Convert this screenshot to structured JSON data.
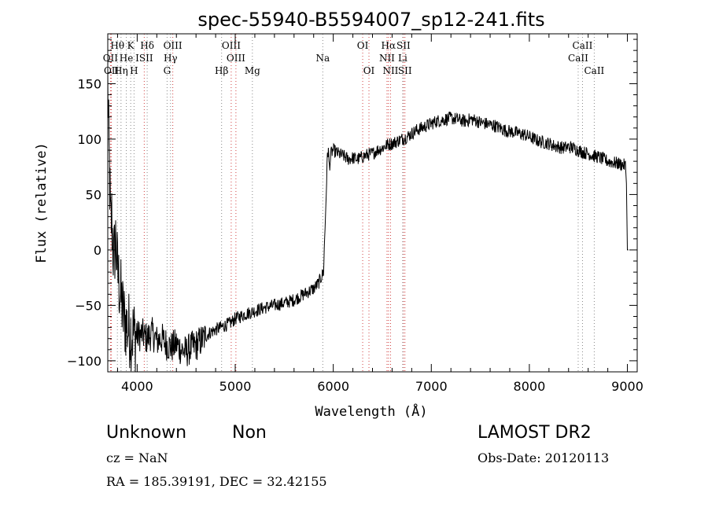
{
  "chart_data": {
    "type": "line",
    "title": "spec-55940-B5594007_sp12-241.fits",
    "xlabel": "Wavelength (Å)",
    "ylabel": "Flux (relative)",
    "xlim": [
      3700,
      9100
    ],
    "ylim": [
      -110,
      195
    ],
    "xticks": [
      4000,
      5000,
      6000,
      7000,
      8000,
      9000
    ],
    "xtick_labels": [
      "4000",
      "5000",
      "6000",
      "7000",
      "8000",
      "9000"
    ],
    "yticks": [
      -100,
      -50,
      0,
      50,
      100,
      150
    ],
    "ytick_labels": [
      "−100",
      "−50",
      "0",
      "50",
      "100",
      "150"
    ],
    "grid": false,
    "series": [
      {
        "x": [
          3700,
          3710,
          3720,
          3730,
          3740,
          3760,
          3780,
          3800,
          3830,
          3860,
          3900,
          3950,
          4000,
          4050,
          4100,
          4150,
          4200,
          4250,
          4300,
          4350,
          4400,
          4450,
          4500,
          4550,
          4600,
          4650,
          4700,
          4750,
          4800,
          4850,
          4900,
          4950,
          5000,
          5100,
          5200,
          5300,
          5400,
          5500,
          5600,
          5700,
          5800,
          5850,
          5900,
          5920,
          5940,
          5950,
          5960,
          5980,
          6000,
          6050,
          6100,
          6150,
          6200,
          6250,
          6300,
          6350,
          6400,
          6450,
          6500,
          6550,
          6600,
          6650,
          6700,
          6750,
          6800,
          6850,
          6900,
          6950,
          7000,
          7050,
          7100,
          7150,
          7200,
          7250,
          7300,
          7350,
          7400,
          7450,
          7500,
          7550,
          7600,
          7650,
          7700,
          7750,
          7800,
          7850,
          7900,
          7950,
          8000,
          8050,
          8100,
          8150,
          8200,
          8250,
          8300,
          8350,
          8400,
          8450,
          8500,
          8550,
          8600,
          8650,
          8700,
          8750,
          8800,
          8850,
          8900,
          8950,
          8980,
          8990,
          9000,
          9010
        ],
        "y": [
          150,
          100,
          60,
          20,
          30,
          -10,
          10,
          -20,
          -40,
          -60,
          -70,
          -75,
          -78,
          -76,
          -80,
          -75,
          -82,
          -80,
          -85,
          -88,
          -85,
          -90,
          -92,
          -88,
          -86,
          -82,
          -78,
          -74,
          -72,
          -70,
          -68,
          -66,
          -62,
          -58,
          -55,
          -52,
          -50,
          -48,
          -45,
          -40,
          -35,
          -30,
          -20,
          30,
          85,
          90,
          75,
          88,
          90,
          87,
          85,
          82,
          83,
          82,
          84,
          86,
          87,
          90,
          92,
          95,
          96,
          98,
          100,
          102,
          105,
          108,
          110,
          112,
          114,
          116,
          117,
          118,
          119,
          118,
          117,
          116,
          118,
          117,
          115,
          114,
          113,
          112,
          110,
          108,
          107,
          106,
          105,
          104,
          102,
          100,
          98,
          97,
          96,
          94,
          93,
          92,
          93,
          92,
          90,
          88,
          87,
          85,
          84,
          82,
          80,
          79,
          78,
          77,
          76,
          60,
          0,
          0
        ],
        "noise": 6
      }
    ],
    "lines": [
      {
        "name": "Hθ",
        "wl": 3798,
        "row": 0,
        "color": "gray"
      },
      {
        "name": "K",
        "wl": 3934,
        "row": 0,
        "color": "gray"
      },
      {
        "name": "Hδ",
        "wl": 4102,
        "row": 0,
        "color": "gray"
      },
      {
        "name": "OIII",
        "wl": 4363,
        "row": 0,
        "color": "red"
      },
      {
        "name": "OIII",
        "wl": 4959,
        "row": 0,
        "color": "red"
      },
      {
        "name": "OI",
        "wl": 6300,
        "row": 0,
        "color": "red"
      },
      {
        "name": "Hα",
        "wl": 6563,
        "row": 0,
        "color": "red"
      },
      {
        "name": "SII",
        "wl": 6716,
        "row": 0,
        "color": "red"
      },
      {
        "name": "CaII",
        "wl": 8542,
        "row": 0,
        "color": "gray"
      },
      {
        "name": "OII",
        "wl": 3727,
        "row": 1,
        "color": "red"
      },
      {
        "name": "He",
        "wl": 3889,
        "row": 1,
        "color": "gray"
      },
      {
        "name": "ISII",
        "wl": 4072,
        "row": 1,
        "color": "red"
      },
      {
        "name": "Hγ",
        "wl": 4340,
        "row": 1,
        "color": "gray"
      },
      {
        "name": "OIII",
        "wl": 5007,
        "row": 1,
        "color": "red"
      },
      {
        "name": "NII",
        "wl": 6548,
        "row": 1,
        "color": "red"
      },
      {
        "name": "Li",
        "wl": 6708,
        "row": 1,
        "color": "gray"
      },
      {
        "name": "CaII",
        "wl": 8498,
        "row": 1,
        "color": "gray"
      },
      {
        "name": "OII",
        "wl": 3737,
        "row": 2,
        "color": "red"
      },
      {
        "name": "Hη",
        "wl": 3835,
        "row": 2,
        "color": "gray"
      },
      {
        "name": "H",
        "wl": 3968,
        "row": 2,
        "color": "gray"
      },
      {
        "name": "G",
        "wl": 4305,
        "row": 2,
        "color": "gray"
      },
      {
        "name": "Hβ",
        "wl": 4861,
        "row": 2,
        "color": "gray"
      },
      {
        "name": "Mg",
        "wl": 5175,
        "row": 2,
        "color": "gray"
      },
      {
        "name": "Na",
        "wl": 5893,
        "row": 1,
        "color": "gray"
      },
      {
        "name": "OI",
        "wl": 6364,
        "row": 2,
        "color": "red"
      },
      {
        "name": "NII",
        "wl": 6584,
        "row": 2,
        "color": "red"
      },
      {
        "name": "SII",
        "wl": 6731,
        "row": 2,
        "color": "red"
      },
      {
        "name": "CaII",
        "wl": 8662,
        "row": 2,
        "color": "gray"
      }
    ]
  },
  "info": {
    "class": "Unknown",
    "subclass": "Non",
    "cz": "cz = NaN",
    "radec": "RA = 185.39191, DEC =  32.42155",
    "survey": "LAMOST DR2",
    "obsdate": "Obs-Date: 20120113"
  }
}
